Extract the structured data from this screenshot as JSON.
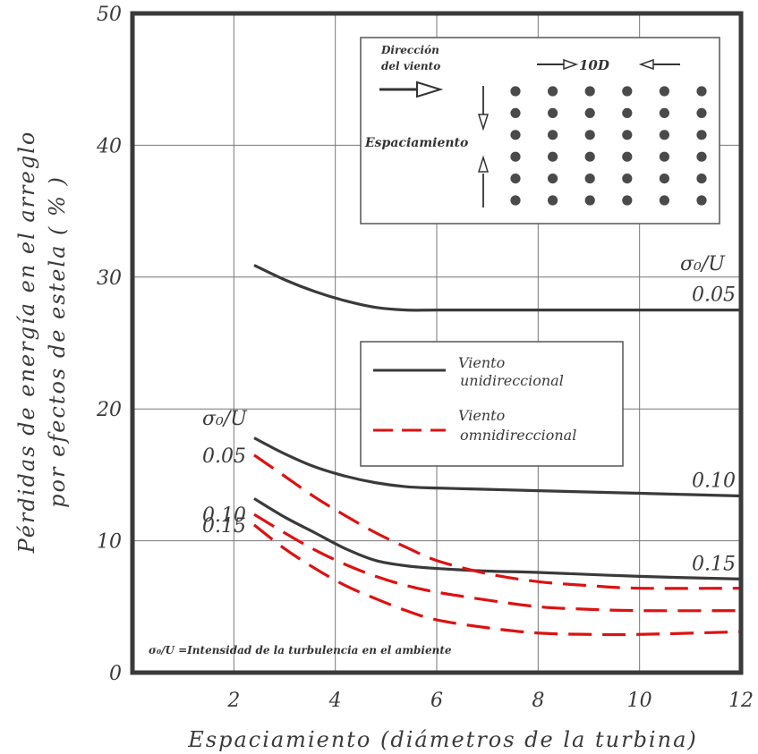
{
  "chart_data": {
    "type": "line",
    "xlabel": "Espaciamiento (diámetros de la turbina)",
    "ylabel_line1": "Pérdidas de energía en el arreglo",
    "ylabel_line2": "por efectos de estela ( % )",
    "xlim": [
      0,
      12
    ],
    "ylim": [
      0,
      50
    ],
    "x_ticks": [
      "2",
      "4",
      "6",
      "8",
      "10",
      "12"
    ],
    "y_ticks": [
      "0",
      "10",
      "20",
      "30",
      "40",
      "50"
    ],
    "grid": true,
    "series": [
      {
        "name": "Viento unidireccional",
        "style": "solid",
        "color": "#3a3a3a",
        "label": "0.05",
        "label_side": "right",
        "x": [
          2.4,
          3.0,
          3.6,
          4.2,
          4.8,
          5.4,
          6.0,
          7.0,
          8.0,
          10.0,
          12.0
        ],
        "y": [
          30.9,
          29.8,
          28.9,
          28.2,
          27.7,
          27.5,
          27.5,
          27.5,
          27.5,
          27.5,
          27.5
        ]
      },
      {
        "name": "Viento unidireccional",
        "style": "solid",
        "color": "#3a3a3a",
        "label": "0.10",
        "label_side": "right",
        "x": [
          2.4,
          3.0,
          3.6,
          4.2,
          4.8,
          5.4,
          6.0,
          7.0,
          8.0,
          10.0,
          12.0
        ],
        "y": [
          17.8,
          16.6,
          15.6,
          14.9,
          14.4,
          14.1,
          14.0,
          13.9,
          13.8,
          13.6,
          13.4
        ]
      },
      {
        "name": "Viento unidireccional",
        "style": "solid",
        "color": "#3a3a3a",
        "label": "0.15",
        "label_side": "right",
        "x": [
          2.4,
          3.0,
          3.6,
          4.2,
          4.8,
          5.4,
          6.0,
          7.0,
          8.0,
          10.0,
          12.0
        ],
        "y": [
          13.2,
          11.8,
          10.6,
          9.4,
          8.5,
          8.1,
          7.9,
          7.7,
          7.6,
          7.3,
          7.1
        ]
      },
      {
        "name": "Viento omnidireccional",
        "style": "dashed",
        "color": "#dd1111",
        "label": "0.05",
        "label_side": "left",
        "x": [
          2.4,
          3.0,
          3.6,
          4.2,
          4.8,
          5.4,
          6.0,
          7.0,
          8.0,
          9.0,
          10.0,
          12.0
        ],
        "y": [
          16.5,
          14.9,
          13.3,
          11.9,
          10.6,
          9.5,
          8.5,
          7.5,
          6.9,
          6.6,
          6.4,
          6.4
        ]
      },
      {
        "name": "Viento omnidireccional",
        "style": "dashed",
        "color": "#dd1111",
        "label": "0.10",
        "label_side": "left",
        "x": [
          2.4,
          3.0,
          3.6,
          4.2,
          4.8,
          5.4,
          6.0,
          7.0,
          8.0,
          9.0,
          10.0,
          12.0
        ],
        "y": [
          12.0,
          10.6,
          9.3,
          8.2,
          7.3,
          6.6,
          6.1,
          5.5,
          5.0,
          4.8,
          4.7,
          4.7
        ]
      },
      {
        "name": "Viento omnidireccional",
        "style": "dashed",
        "color": "#dd1111",
        "label": "0.15",
        "label_side": "left",
        "x": [
          2.4,
          3.0,
          3.6,
          4.2,
          4.8,
          5.4,
          6.0,
          7.0,
          8.0,
          9.0,
          10.0,
          12.0
        ],
        "y": [
          11.2,
          9.4,
          7.9,
          6.6,
          5.6,
          4.7,
          4.0,
          3.4,
          3.0,
          2.9,
          2.9,
          3.1
        ]
      }
    ],
    "left_header": "σ₀/U",
    "right_header": "σ₀/U",
    "legend": {
      "placement": "center-right",
      "entries": [
        {
          "line1": "Viento",
          "line2": "unidireccional",
          "style": "solid",
          "color": "#3a3a3a"
        },
        {
          "line1": "Viento",
          "line2": "omnidireccional",
          "style": "dashed",
          "color": "#dd1111"
        }
      ]
    },
    "inset": {
      "direction_line1": "Dirección",
      "direction_line2": "del viento",
      "spacing_label": "Espaciamiento",
      "distance_label": "10D",
      "grid_rows": 6,
      "grid_cols": 6
    },
    "footnote": "σ₀/U =Intensidad de la turbulencia en el ambiente"
  }
}
